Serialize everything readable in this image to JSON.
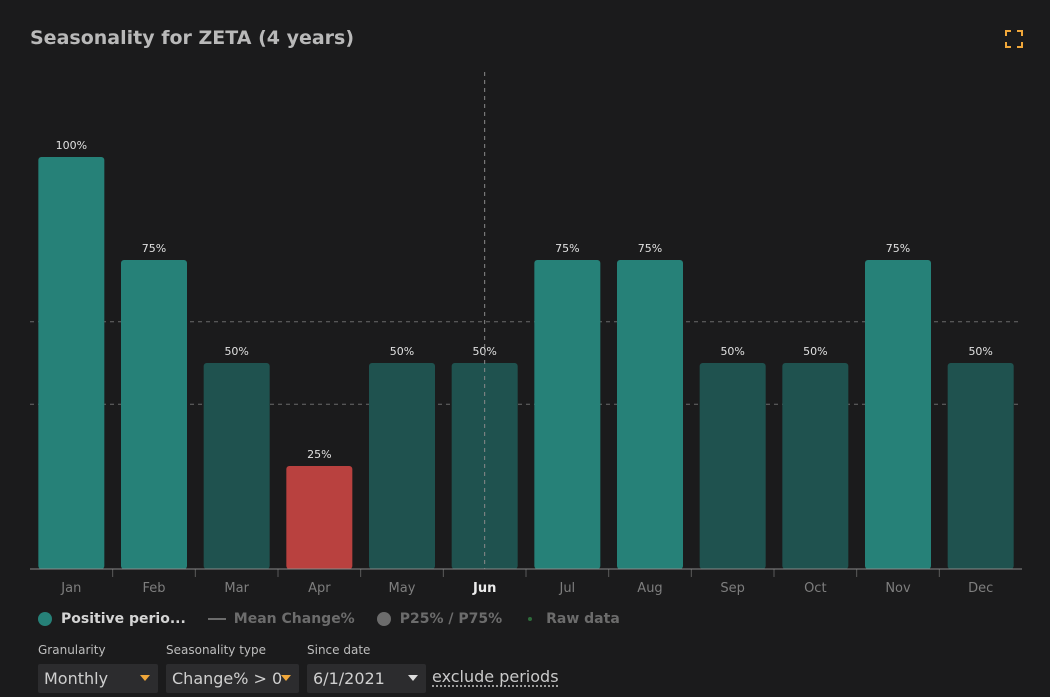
{
  "title": "Seasonality for ZETA (4 years)",
  "expand_icon": "expand-icon",
  "colors": {
    "positive_high": "#268178",
    "positive_mid": "#1f524f",
    "negative": "#b9413f",
    "accent": "#f0a73a"
  },
  "chart_data": {
    "type": "bar",
    "categories": [
      "Jan",
      "Feb",
      "Mar",
      "Apr",
      "May",
      "Jun",
      "Jul",
      "Aug",
      "Sep",
      "Oct",
      "Nov",
      "Dec"
    ],
    "values": [
      100,
      75,
      50,
      25,
      50,
      50,
      75,
      75,
      50,
      50,
      75,
      50
    ],
    "data_labels": [
      "100%",
      "75%",
      "50%",
      "25%",
      "50%",
      "50%",
      "75%",
      "75%",
      "50%",
      "50%",
      "75%",
      "50%"
    ],
    "highlighted_category": "Jun",
    "ylim": [
      0,
      100
    ],
    "reference_lines": [
      40,
      60
    ],
    "xlabel": "",
    "ylabel": ""
  },
  "legend": {
    "items": [
      {
        "label": "Positive perio...",
        "icon": "dot",
        "color": "#268178",
        "active": true
      },
      {
        "label": "Mean Change%",
        "icon": "line",
        "color": "#6c6c6c",
        "active": false
      },
      {
        "label": "P25% / P75%",
        "icon": "dot",
        "color": "#6c6c6c",
        "active": false
      },
      {
        "label": "Raw data",
        "icon": "tiny-dot",
        "color": "#2d6b3a",
        "active": false
      }
    ]
  },
  "controls": {
    "granularity": {
      "label": "Granularity",
      "value": "Monthly"
    },
    "seasonality_type": {
      "label": "Seasonality type",
      "value": "Change% > 0"
    },
    "since_date": {
      "label": "Since date",
      "value": "6/1/2021"
    },
    "exclude_link": "exclude periods"
  }
}
